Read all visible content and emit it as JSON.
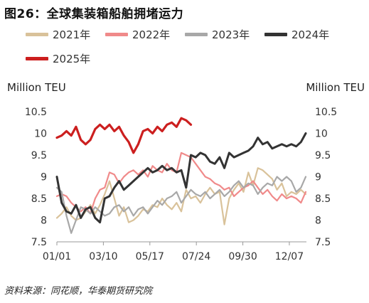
{
  "title": "图26：全球集装箱船舶拥堵运力",
  "source": "资料来源：同花顺，华泰期货研究院",
  "chart_data": {
    "type": "line",
    "title": "图26：全球集装箱船舶拥堵运力",
    "ylabel_left": "Million TEU",
    "ylabel_right": "Million TEU",
    "ylim": [
      7.5,
      10.5
    ],
    "yticks": [
      7.5,
      8,
      8.5,
      9,
      9.5,
      10,
      10.5
    ],
    "ytick_labels": [
      "7.5",
      "8",
      "8.5",
      "9",
      "9.5",
      "10",
      "10.5"
    ],
    "xticks": [
      1,
      69,
      137,
      205,
      273,
      341
    ],
    "xtick_labels": [
      "01/01",
      "03/10",
      "05/17",
      "07/24",
      "09/30",
      "12/07"
    ],
    "xlim": [
      1,
      366
    ],
    "grid": false,
    "legend_position": "top",
    "series": [
      {
        "name": "2021年",
        "color": "#d9c29a",
        "x": [
          1,
          8,
          15,
          22,
          29,
          36,
          43,
          50,
          57,
          64,
          71,
          78,
          85,
          92,
          99,
          106,
          113,
          120,
          127,
          134,
          141,
          148,
          155,
          162,
          169,
          176,
          183,
          190,
          197,
          204,
          211,
          218,
          225,
          232,
          239,
          246,
          253,
          260,
          267,
          274,
          281,
          288,
          295,
          302,
          309,
          316,
          323,
          330,
          337,
          344,
          351,
          358,
          365
        ],
        "values": [
          8.05,
          8.15,
          8.3,
          8.1,
          8.0,
          8.05,
          8.2,
          8.35,
          8.15,
          8.35,
          8.6,
          8.9,
          8.5,
          8.1,
          8.3,
          7.95,
          8.0,
          8.1,
          8.25,
          8.2,
          8.35,
          8.3,
          8.5,
          8.35,
          8.25,
          8.4,
          8.2,
          8.7,
          8.5,
          8.55,
          8.4,
          8.6,
          8.75,
          8.6,
          8.65,
          7.9,
          8.5,
          8.7,
          8.85,
          8.65,
          9.1,
          8.8,
          9.2,
          9.15,
          9.05,
          8.95,
          8.7,
          8.85,
          8.55,
          8.65,
          8.6,
          8.7,
          8.6
        ]
      },
      {
        "name": "2022年",
        "color": "#f08a8a",
        "x": [
          1,
          8,
          15,
          22,
          29,
          36,
          43,
          50,
          57,
          64,
          71,
          78,
          85,
          92,
          99,
          106,
          113,
          120,
          127,
          134,
          141,
          148,
          155,
          162,
          169,
          176,
          183,
          190,
          197,
          204,
          211,
          218,
          225,
          232,
          239,
          246,
          253,
          260,
          267,
          274,
          281,
          288,
          295,
          302,
          309,
          316,
          323,
          330,
          337,
          344,
          351,
          358,
          365
        ],
        "values": [
          8.55,
          8.6,
          8.55,
          8.4,
          8.3,
          8.2,
          8.3,
          8.15,
          8.5,
          8.7,
          8.75,
          9.1,
          9.05,
          8.85,
          9.0,
          9.1,
          9.15,
          9.05,
          9.15,
          9.0,
          9.25,
          9.15,
          9.1,
          9.3,
          9.15,
          9.1,
          9.55,
          9.5,
          9.45,
          9.3,
          9.15,
          9.0,
          8.95,
          8.85,
          8.8,
          8.7,
          8.75,
          8.55,
          8.65,
          8.75,
          8.8,
          8.9,
          8.75,
          8.6,
          8.7,
          8.55,
          8.45,
          8.6,
          8.5,
          8.55,
          8.5,
          8.4,
          8.65
        ]
      },
      {
        "name": "2023年",
        "color": "#a8a8a8",
        "x": [
          1,
          8,
          15,
          22,
          29,
          36,
          43,
          50,
          57,
          64,
          71,
          78,
          85,
          92,
          99,
          106,
          113,
          120,
          127,
          134,
          141,
          148,
          155,
          162,
          169,
          176,
          183,
          190,
          197,
          204,
          211,
          218,
          225,
          232,
          239,
          246,
          253,
          260,
          267,
          274,
          281,
          288,
          295,
          302,
          309,
          316,
          323,
          330,
          337,
          344,
          351,
          358,
          365
        ],
        "values": [
          8.75,
          8.65,
          8.1,
          7.7,
          8.0,
          8.3,
          8.25,
          8.15,
          8.3,
          8.2,
          8.1,
          8.15,
          8.3,
          8.35,
          8.2,
          8.3,
          8.1,
          8.25,
          8.3,
          8.15,
          8.3,
          8.45,
          8.35,
          8.5,
          8.55,
          8.65,
          8.4,
          8.55,
          8.7,
          8.6,
          8.55,
          8.65,
          8.5,
          8.6,
          8.7,
          8.55,
          8.65,
          8.8,
          8.9,
          8.75,
          8.85,
          8.8,
          8.6,
          8.75,
          8.85,
          8.8,
          9.0,
          8.9,
          9.0,
          8.9,
          8.65,
          8.75,
          9.0
        ]
      },
      {
        "name": "2024年",
        "color": "#333333",
        "x": [
          1,
          8,
          15,
          22,
          29,
          36,
          43,
          50,
          57,
          64,
          71,
          78,
          85,
          92,
          99,
          106,
          113,
          120,
          127,
          134,
          141,
          148,
          155,
          162,
          169,
          176,
          183,
          190,
          197,
          204,
          211,
          218,
          225,
          232,
          239,
          246,
          253,
          260,
          267,
          274,
          281,
          288,
          295,
          302,
          309,
          316,
          323,
          330,
          337,
          344,
          351,
          358,
          365
        ],
        "values": [
          9.0,
          8.4,
          8.2,
          8.15,
          8.35,
          8.05,
          8.25,
          8.3,
          8.05,
          7.95,
          8.5,
          8.55,
          8.75,
          8.9,
          8.7,
          8.8,
          8.9,
          9.0,
          9.1,
          9.2,
          9.1,
          9.15,
          9.25,
          9.15,
          9.2,
          9.1,
          9.15,
          8.75,
          9.5,
          9.45,
          9.55,
          9.5,
          9.35,
          9.3,
          9.45,
          9.2,
          9.55,
          9.45,
          9.5,
          9.55,
          9.6,
          9.7,
          9.9,
          9.75,
          9.8,
          9.65,
          9.7,
          9.75,
          9.7,
          9.75,
          9.7,
          9.8,
          10.0
        ]
      },
      {
        "name": "2025年",
        "color": "#cc1f1f",
        "x": [
          1,
          8,
          15,
          22,
          29,
          36,
          43,
          50,
          57,
          64,
          71,
          78,
          85,
          92,
          99,
          106,
          113,
          120,
          127,
          134,
          141,
          148,
          155,
          162,
          169,
          176,
          183,
          190,
          197
        ],
        "values": [
          9.9,
          9.95,
          10.05,
          9.95,
          10.15,
          9.85,
          9.75,
          9.85,
          10.1,
          10.2,
          10.1,
          10.2,
          10.05,
          10.15,
          9.95,
          9.8,
          9.55,
          9.75,
          10.05,
          10.1,
          10.0,
          10.15,
          10.05,
          10.2,
          10.25,
          10.15,
          10.35,
          10.3,
          10.2
        ]
      }
    ]
  }
}
